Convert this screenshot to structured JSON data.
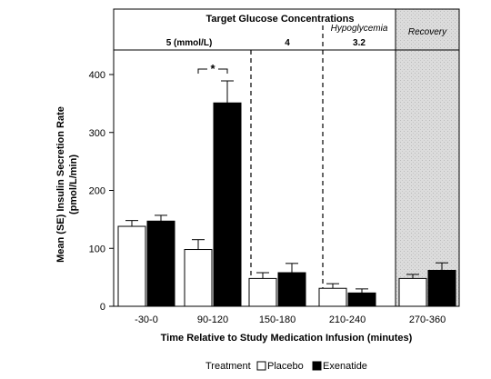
{
  "chart_data": {
    "type": "bar",
    "header": {
      "title": "Target Glucose Concentrations",
      "segments": [
        {
          "label": "5 (mmol/L)",
          "sublabel": "",
          "shaded": false,
          "italic_label": ""
        },
        {
          "label": "4",
          "sublabel": "",
          "shaded": false,
          "italic_label": ""
        },
        {
          "label": "3.2",
          "sublabel": "",
          "shaded": false,
          "italic_label": "Hypoglycemia"
        },
        {
          "label": "",
          "sublabel": "",
          "shaded": true,
          "italic_label": "Recovery"
        }
      ]
    },
    "categories": [
      "-30-0",
      "90-120",
      "150-180",
      "210-240",
      "270-360"
    ],
    "series": [
      {
        "name": "Placebo",
        "color": "#ffffff",
        "values": [
          138,
          98,
          48,
          31,
          48
        ],
        "errors": [
          10,
          17,
          10,
          8,
          7
        ]
      },
      {
        "name": "Exenatide",
        "color": "#000000",
        "values": [
          147,
          351,
          58,
          23,
          62
        ],
        "errors": [
          10,
          38,
          16,
          7,
          13
        ]
      }
    ],
    "xlabel": "Time Relative to Study Medication Infusion (minutes)",
    "ylabel_line1": "Mean (SE) Insulin Secretion Rate",
    "ylabel_line2": "(pmol/L/min)",
    "ylim": [
      0,
      400
    ],
    "yticks": [
      0,
      100,
      200,
      300,
      400
    ],
    "significance": {
      "category_index": 1,
      "label": "*"
    },
    "legend": {
      "title": "Treatment",
      "placement": "bottom"
    }
  }
}
